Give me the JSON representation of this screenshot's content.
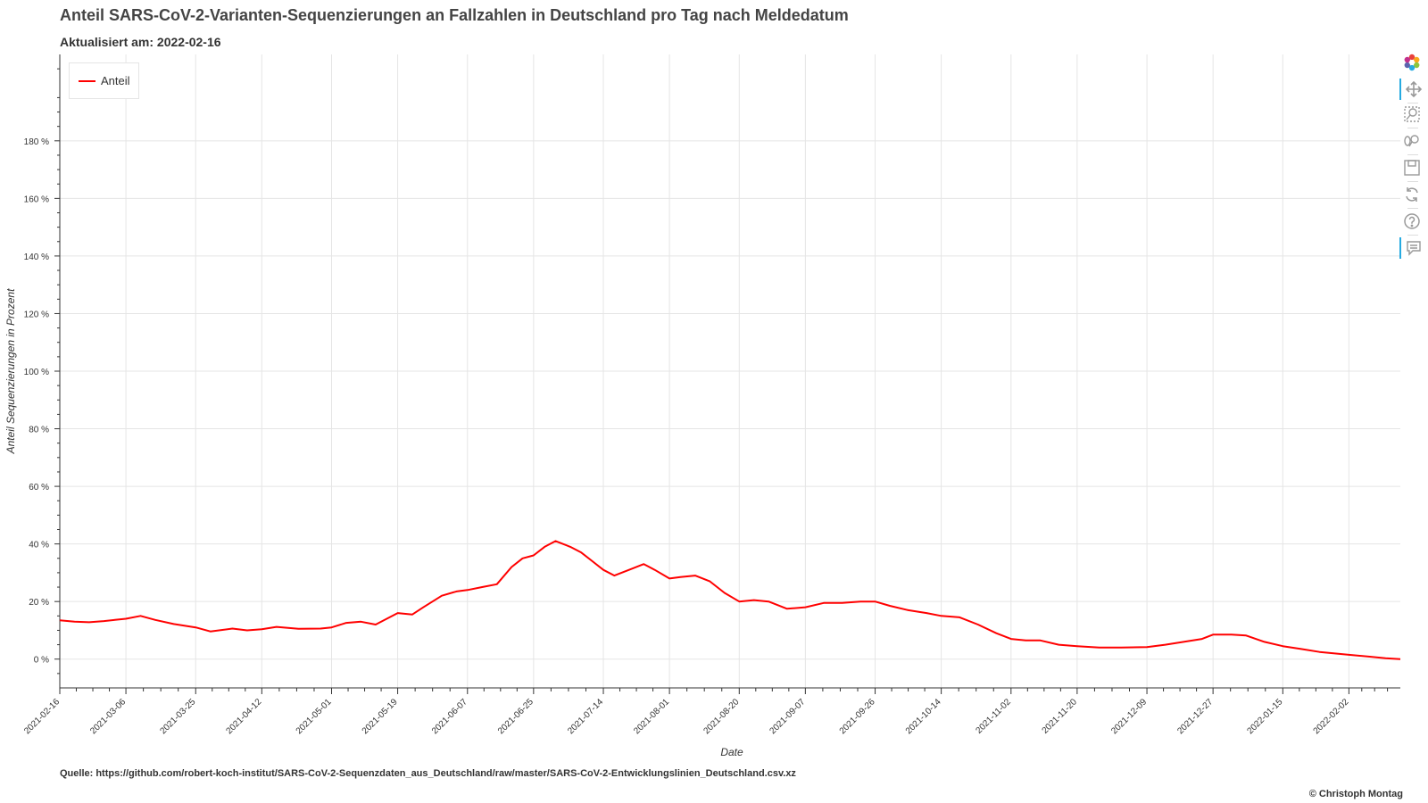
{
  "header": {
    "title": "Anteil SARS-CoV-2-Varianten-Sequenzierungen an Fallzahlen in Deutschland pro Tag nach Meldedatum",
    "subtitle": "Aktualisiert am: 2022-02-16"
  },
  "footer": {
    "source": "Quelle: https://github.com/robert-koch-institut/SARS-CoV-2-Sequenzdaten_aus_Deutschland/raw/master/SARS-CoV-2-Entwicklungslinien_Deutschland.csv.xz",
    "copyright": "© Christoph Montag"
  },
  "toolbar": {
    "tools": [
      {
        "name": "bokeh-logo-icon",
        "active": false
      },
      {
        "name": "pan-icon",
        "active": true
      },
      {
        "name": "box-zoom-icon",
        "active": false
      },
      {
        "name": "wheel-zoom-icon",
        "active": false
      },
      {
        "name": "save-icon",
        "active": false
      },
      {
        "name": "reset-icon",
        "active": false
      },
      {
        "name": "help-icon",
        "active": false
      },
      {
        "name": "hover-icon",
        "active": true
      }
    ]
  },
  "chart_data": {
    "type": "line",
    "title": "Anteil SARS-CoV-2-Varianten-Sequenzierungen an Fallzahlen in Deutschland pro Tag nach Meldedatum",
    "subtitle": "Aktualisiert am: 2022-02-16",
    "xlabel": "Date",
    "ylabel": "Anteil Sequenzierungen in Prozent",
    "x_range": [
      "2021-02-16",
      "2022-02-16"
    ],
    "ylim": [
      -10,
      210
    ],
    "yticks": [
      0,
      20,
      40,
      60,
      80,
      100,
      120,
      140,
      160,
      180
    ],
    "ytick_labels": [
      "0 %",
      "20 %",
      "40 %",
      "60 %",
      "80 %",
      "100 %",
      "120 %",
      "140 %",
      "160 %",
      "180 %"
    ],
    "xtick_labels": [
      "2021-02-16",
      "2021-03-06",
      "2021-03-25",
      "2021-04-12",
      "2021-05-01",
      "2021-05-19",
      "2021-06-07",
      "2021-06-25",
      "2021-07-14",
      "2021-08-01",
      "2021-08-20",
      "2021-09-07",
      "2021-09-26",
      "2021-10-14",
      "2021-11-02",
      "2021-11-20",
      "2021-12-09",
      "2021-12-27",
      "2022-01-15",
      "2022-02-02"
    ],
    "grid": true,
    "legend": {
      "position": "top-left",
      "entries": [
        "Anteil"
      ]
    },
    "series": [
      {
        "name": "Anteil",
        "color": "#ff0000",
        "x": [
          "2021-02-16",
          "2021-02-20",
          "2021-02-24",
          "2021-02-28",
          "2021-03-03",
          "2021-03-06",
          "2021-03-10",
          "2021-03-14",
          "2021-03-19",
          "2021-03-25",
          "2021-03-29",
          "2021-04-04",
          "2021-04-08",
          "2021-04-12",
          "2021-04-16",
          "2021-04-22",
          "2021-04-28",
          "2021-05-01",
          "2021-05-05",
          "2021-05-09",
          "2021-05-13",
          "2021-05-19",
          "2021-05-23",
          "2021-05-26",
          "2021-05-31",
          "2021-06-04",
          "2021-06-07",
          "2021-06-11",
          "2021-06-15",
          "2021-06-19",
          "2021-06-22",
          "2021-06-25",
          "2021-06-28",
          "2021-07-01",
          "2021-07-05",
          "2021-07-08",
          "2021-07-11",
          "2021-07-14",
          "2021-07-17",
          "2021-07-21",
          "2021-07-25",
          "2021-07-28",
          "2021-08-01",
          "2021-08-04",
          "2021-08-08",
          "2021-08-12",
          "2021-08-16",
          "2021-08-20",
          "2021-08-24",
          "2021-08-28",
          "2021-09-02",
          "2021-09-07",
          "2021-09-12",
          "2021-09-17",
          "2021-09-22",
          "2021-09-26",
          "2021-09-30",
          "2021-10-05",
          "2021-10-10",
          "2021-10-14",
          "2021-10-19",
          "2021-10-24",
          "2021-10-29",
          "2021-11-02",
          "2021-11-06",
          "2021-11-10",
          "2021-11-15",
          "2021-11-20",
          "2021-11-26",
          "2021-12-02",
          "2021-12-09",
          "2021-12-14",
          "2021-12-19",
          "2021-12-24",
          "2021-12-27",
          "2022-01-01",
          "2022-01-05",
          "2022-01-10",
          "2022-01-15",
          "2022-01-20",
          "2022-01-25",
          "2022-02-02",
          "2022-02-08",
          "2022-02-12",
          "2022-02-16"
        ],
        "y": [
          13.5,
          13.0,
          12.8,
          13.2,
          13.6,
          14.0,
          15.0,
          13.6,
          12.2,
          11.0,
          9.6,
          10.6,
          10.0,
          10.4,
          11.2,
          10.5,
          10.6,
          11.0,
          12.6,
          13.0,
          12.0,
          16.0,
          15.5,
          18.0,
          22.0,
          23.5,
          24.0,
          25.0,
          26.0,
          32.0,
          35.0,
          36.0,
          39.0,
          41.0,
          39.0,
          37.0,
          34.0,
          31.0,
          29.0,
          31.0,
          33.0,
          31.0,
          28.0,
          28.5,
          29.0,
          27.0,
          23.0,
          20.0,
          20.5,
          20.0,
          17.5,
          18.0,
          19.5,
          19.5,
          20.0,
          20.0,
          18.5,
          17.0,
          16.0,
          15.0,
          14.5,
          12.0,
          9.0,
          7.0,
          6.5,
          6.5,
          5.0,
          4.5,
          4.0,
          4.0,
          4.2,
          5.0,
          6.0,
          7.0,
          8.5,
          8.5,
          8.2,
          6.0,
          4.5,
          3.5,
          2.5,
          1.5,
          0.8,
          0.3,
          0.0
        ]
      }
    ]
  }
}
